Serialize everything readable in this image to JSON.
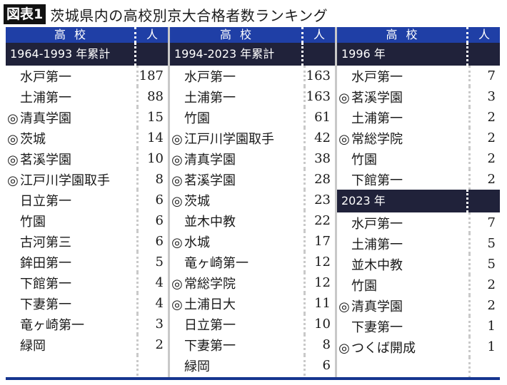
{
  "title": {
    "badge": "図表1",
    "text": "茨城県内の高校別京大合格者数ランキング"
  },
  "header": {
    "school": "高校",
    "count": "人"
  },
  "marker_legend": "◎",
  "tables": [
    {
      "period": "1964-1993 年累計",
      "rows": [
        {
          "mark": "",
          "name": "水戸第一",
          "count": "187"
        },
        {
          "mark": "",
          "name": "土浦第一",
          "count": "88"
        },
        {
          "mark": "◎",
          "name": "清真学園",
          "count": "15"
        },
        {
          "mark": "◎",
          "name": "茨城",
          "count": "14"
        },
        {
          "mark": "◎",
          "name": "茗溪学園",
          "count": "10"
        },
        {
          "mark": "◎",
          "name": "江戸川学園取手",
          "count": "8"
        },
        {
          "mark": "",
          "name": "日立第一",
          "count": "6"
        },
        {
          "mark": "",
          "name": "竹園",
          "count": "6"
        },
        {
          "mark": "",
          "name": "古河第三",
          "count": "6"
        },
        {
          "mark": "",
          "name": "鉾田第一",
          "count": "5"
        },
        {
          "mark": "",
          "name": "下館第一",
          "count": "4"
        },
        {
          "mark": "",
          "name": "下妻第一",
          "count": "4"
        },
        {
          "mark": "",
          "name": "竜ヶ崎第一",
          "count": "3"
        },
        {
          "mark": "",
          "name": "緑岡",
          "count": "2"
        }
      ]
    },
    {
      "period": "1994-2023 年累計",
      "rows": [
        {
          "mark": "",
          "name": "水戸第一",
          "count": "163"
        },
        {
          "mark": "",
          "name": "土浦第一",
          "count": "163"
        },
        {
          "mark": "",
          "name": "竹園",
          "count": "61"
        },
        {
          "mark": "◎",
          "name": "江戸川学園取手",
          "count": "42"
        },
        {
          "mark": "◎",
          "name": "清真学園",
          "count": "38"
        },
        {
          "mark": "◎",
          "name": "茗溪学園",
          "count": "28"
        },
        {
          "mark": "◎",
          "name": "茨城",
          "count": "23"
        },
        {
          "mark": "",
          "name": "並木中教",
          "count": "22"
        },
        {
          "mark": "◎",
          "name": "水城",
          "count": "17"
        },
        {
          "mark": "",
          "name": "竜ヶ崎第一",
          "count": "12"
        },
        {
          "mark": "◎",
          "name": "常総学院",
          "count": "12"
        },
        {
          "mark": "◎",
          "name": "土浦日大",
          "count": "11"
        },
        {
          "mark": "",
          "name": "日立第一",
          "count": "10"
        },
        {
          "mark": "",
          "name": "下妻第一",
          "count": "8"
        },
        {
          "mark": "",
          "name": "緑岡",
          "count": "6"
        }
      ]
    },
    {
      "period": "1996 年",
      "rows": [
        {
          "mark": "",
          "name": "水戸第一",
          "count": "7"
        },
        {
          "mark": "◎",
          "name": "茗溪学園",
          "count": "3"
        },
        {
          "mark": "",
          "name": "土浦第一",
          "count": "2"
        },
        {
          "mark": "◎",
          "name": "常総学院",
          "count": "2"
        },
        {
          "mark": "",
          "name": "竹園",
          "count": "2"
        },
        {
          "mark": "",
          "name": "下館第一",
          "count": "2"
        }
      ],
      "period2": "2023 年",
      "rows2": [
        {
          "mark": "",
          "name": "水戸第一",
          "count": "7"
        },
        {
          "mark": "",
          "name": "土浦第一",
          "count": "5"
        },
        {
          "mark": "",
          "name": "並木中教",
          "count": "5"
        },
        {
          "mark": "",
          "name": "竹園",
          "count": "2"
        },
        {
          "mark": "◎",
          "name": "清真学園",
          "count": "2"
        },
        {
          "mark": "",
          "name": "下妻第一",
          "count": "1"
        },
        {
          "mark": "◎",
          "name": "つくば開成",
          "count": "1"
        }
      ]
    }
  ],
  "colors": {
    "header_blue": "#1f3fa6",
    "subheader_navy": "#20223a",
    "bottom_rule": "#16358f",
    "badge_bg": "#111111"
  }
}
